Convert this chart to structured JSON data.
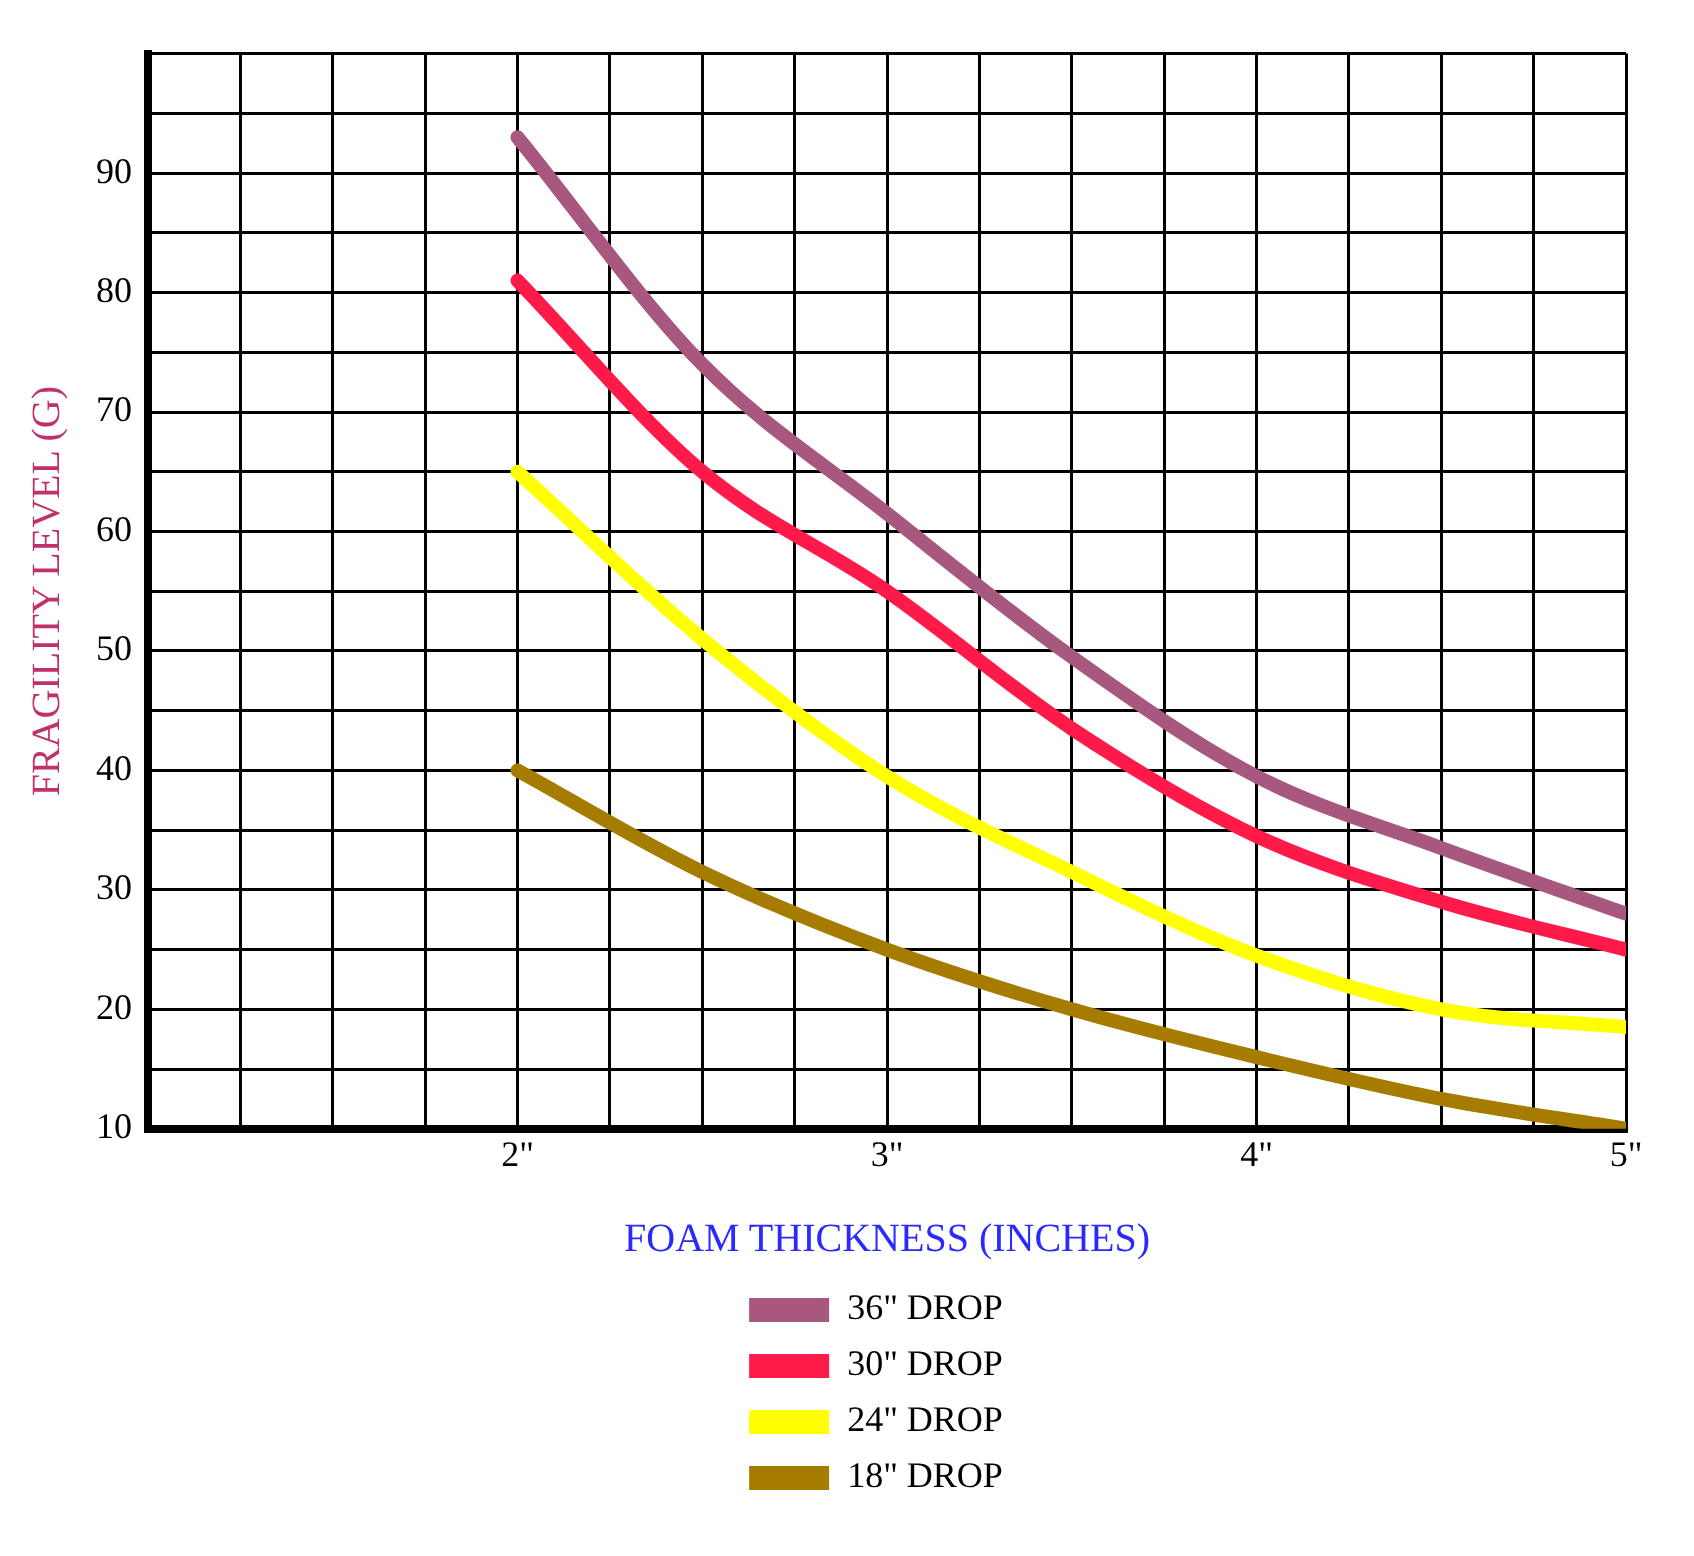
{
  "chart_data": {
    "type": "line",
    "xlabel": "FOAM THICKNESS (INCHES)",
    "ylabel": "FRAGILITY LEVEL (G)",
    "x": [
      2,
      2.5,
      3,
      3.5,
      4,
      4.5,
      5
    ],
    "series": [
      {
        "name": "36\" DROP",
        "color": "#a8587e",
        "values": [
          93,
          74,
          61.5,
          49.5,
          39.5,
          33.5,
          28
        ]
      },
      {
        "name": "30\" DROP",
        "color": "#ff1a4a",
        "values": [
          81,
          65,
          55,
          43.5,
          34.5,
          29,
          25
        ]
      },
      {
        "name": "24\" DROP",
        "color": "#ffff00",
        "values": [
          65,
          51,
          39.5,
          31.5,
          24.5,
          20,
          18.5
        ]
      },
      {
        "name": "18\" DROP",
        "color": "#a67c00",
        "values": [
          40,
          31.5,
          25,
          20,
          16,
          12.5,
          10
        ]
      }
    ],
    "xlim": [
      1,
      5
    ],
    "xticks": [
      {
        "value": 1.25,
        "label": null
      },
      {
        "value": 1.5,
        "label": null
      },
      {
        "value": 1.75,
        "label": null
      },
      {
        "value": 2,
        "label": "2\""
      },
      {
        "value": 2.25,
        "label": null
      },
      {
        "value": 2.5,
        "label": null
      },
      {
        "value": 2.75,
        "label": null
      },
      {
        "value": 3,
        "label": "3\""
      },
      {
        "value": 3.25,
        "label": null
      },
      {
        "value": 3.5,
        "label": null
      },
      {
        "value": 3.75,
        "label": null
      },
      {
        "value": 4,
        "label": "4\""
      },
      {
        "value": 4.25,
        "label": null
      },
      {
        "value": 4.5,
        "label": null
      },
      {
        "value": 4.75,
        "label": null
      },
      {
        "value": 5,
        "label": "5\""
      }
    ],
    "ylim": [
      10,
      100
    ],
    "yticks": [
      10,
      {
        "value": 15,
        "label": null
      },
      20,
      {
        "value": 25,
        "label": null
      },
      30,
      {
        "value": 35,
        "label": null
      },
      40,
      {
        "value": 45,
        "label": null
      },
      50,
      {
        "value": 55,
        "label": null
      },
      60,
      {
        "value": 65,
        "label": null
      },
      70,
      {
        "value": 75,
        "label": null
      },
      80,
      {
        "value": 85,
        "label": null
      },
      90,
      {
        "value": 95,
        "label": null
      },
      {
        "value": 100,
        "label": null
      }
    ],
    "grid": true,
    "legend": "bottom",
    "marker": "none",
    "line_style": "solid"
  }
}
